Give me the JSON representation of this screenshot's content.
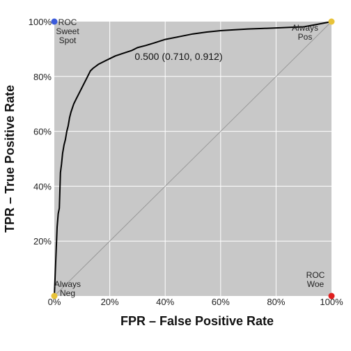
{
  "chart_data": {
    "type": "line",
    "xlabel": "FPR – False Positive Rate",
    "ylabel": "TPR – True Positive Rate",
    "xlim": [
      0,
      1
    ],
    "ylim": [
      0,
      1
    ],
    "x_ticks": [
      "0%",
      "20%",
      "40%",
      "60%",
      "80%",
      "100%"
    ],
    "y_ticks": [
      "20%",
      "40%",
      "60%",
      "80%",
      "100%"
    ],
    "grid": true,
    "background_color": "#c8c8c8",
    "grid_color": "#ffffff",
    "series": [
      {
        "color": "#000000",
        "x": [
          0.0,
          0.002,
          0.006,
          0.01,
          0.014,
          0.018,
          0.022,
          0.026,
          0.03,
          0.035,
          0.04,
          0.045,
          0.05,
          0.055,
          0.06,
          0.07,
          0.08,
          0.09,
          0.1,
          0.11,
          0.12,
          0.13,
          0.14,
          0.16,
          0.18,
          0.2,
          0.22,
          0.25,
          0.28,
          0.3,
          0.33,
          0.36,
          0.4,
          0.45,
          0.5,
          0.55,
          0.6,
          0.65,
          0.7,
          0.75,
          0.8,
          0.85,
          0.9,
          0.95,
          1.0
        ],
        "y": [
          0.0,
          0.05,
          0.15,
          0.25,
          0.3,
          0.32,
          0.45,
          0.48,
          0.52,
          0.55,
          0.57,
          0.6,
          0.62,
          0.65,
          0.67,
          0.7,
          0.72,
          0.74,
          0.76,
          0.78,
          0.8,
          0.82,
          0.83,
          0.845,
          0.855,
          0.865,
          0.875,
          0.885,
          0.895,
          0.905,
          0.913,
          0.922,
          0.935,
          0.945,
          0.955,
          0.962,
          0.967,
          0.97,
          0.973,
          0.975,
          0.977,
          0.979,
          0.981,
          0.99,
          1.0
        ]
      },
      {
        "color": "#999999",
        "x": [
          0,
          1
        ],
        "y": [
          0,
          1
        ]
      }
    ],
    "annotations": [
      {
        "text": "0.500 (0.710, 0.912)",
        "x": 0.29,
        "y": 0.86
      }
    ],
    "corner_points": [
      {
        "lines": [
          "ROC",
          "Sweet",
          "Spot"
        ],
        "x": 0,
        "y": 1,
        "color": "#3b5bdb"
      },
      {
        "lines": [
          "Always",
          "Pos"
        ],
        "x": 1,
        "y": 1,
        "color": "#e8c33a"
      },
      {
        "lines": [
          "Always",
          "Neg"
        ],
        "x": 0,
        "y": 0,
        "color": "#e8c33a"
      },
      {
        "lines": [
          "ROC",
          "Woe"
        ],
        "x": 1,
        "y": 0,
        "color": "#e02020"
      }
    ]
  }
}
